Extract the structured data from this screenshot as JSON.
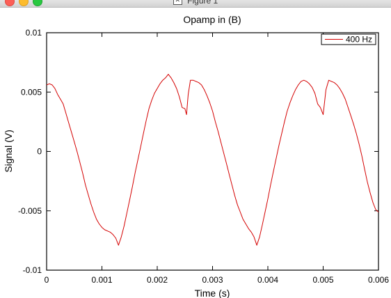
{
  "window": {
    "title": "Figure 1",
    "icon": "x11-icon"
  },
  "chart_data": {
    "type": "line",
    "title": "Opamp in (B)",
    "xlabel": "Time (s)",
    "ylabel": "Signal (V)",
    "xlim": [
      0,
      0.006
    ],
    "ylim": [
      -0.01,
      0.01
    ],
    "x_ticks": [
      0,
      0.001,
      0.002,
      0.003,
      0.004,
      0.005,
      0.006
    ],
    "x_tick_labels": [
      "0",
      "0.001",
      "0.002",
      "0.003",
      "0.004",
      "0.005",
      "0.006"
    ],
    "y_ticks": [
      -0.01,
      -0.005,
      0,
      0.005,
      0.01
    ],
    "y_tick_labels": [
      "-0.01",
      "-0.005",
      "0",
      "0.005",
      "0.01"
    ],
    "grid": false,
    "legend_position": "top-right",
    "series": [
      {
        "name": "400 Hz",
        "color": "#d40000",
        "points": [
          [
            0.0,
            0.0056
          ],
          [
            5e-05,
            0.0057
          ],
          [
            0.0001,
            0.0056
          ],
          [
            0.00015,
            0.0053
          ],
          [
            0.0002,
            0.0048
          ],
          [
            0.00025,
            0.0044
          ],
          [
            0.0003,
            0.004
          ],
          [
            0.00035,
            0.0032
          ],
          [
            0.0004,
            0.0024
          ],
          [
            0.00045,
            0.0016
          ],
          [
            0.0005,
            0.0008
          ],
          [
            0.00055,
            0.0
          ],
          [
            0.0006,
            -0.0009
          ],
          [
            0.00065,
            -0.0018
          ],
          [
            0.0007,
            -0.0028
          ],
          [
            0.00075,
            -0.0036
          ],
          [
            0.0008,
            -0.0044
          ],
          [
            0.00085,
            -0.0051
          ],
          [
            0.0009,
            -0.0057
          ],
          [
            0.00095,
            -0.0061
          ],
          [
            0.001,
            -0.0064
          ],
          [
            0.00105,
            -0.0066
          ],
          [
            0.0011,
            -0.0067
          ],
          [
            0.00115,
            -0.0068
          ],
          [
            0.0012,
            -0.007
          ],
          [
            0.00125,
            -0.0073
          ],
          [
            0.0013,
            -0.0079
          ],
          [
            0.00135,
            -0.0072
          ],
          [
            0.0014,
            -0.0063
          ],
          [
            0.00145,
            -0.0052
          ],
          [
            0.0015,
            -0.0041
          ],
          [
            0.00155,
            -0.003
          ],
          [
            0.0016,
            -0.0018
          ],
          [
            0.00165,
            -0.0007
          ],
          [
            0.0017,
            0.0004
          ],
          [
            0.00175,
            0.0015
          ],
          [
            0.0018,
            0.0026
          ],
          [
            0.00185,
            0.0036
          ],
          [
            0.0019,
            0.0043
          ],
          [
            0.00195,
            0.0049
          ],
          [
            0.002,
            0.0053
          ],
          [
            0.00205,
            0.0057
          ],
          [
            0.0021,
            0.006
          ],
          [
            0.00215,
            0.0062
          ],
          [
            0.0022,
            0.0065
          ],
          [
            0.00225,
            0.0062
          ],
          [
            0.0023,
            0.0058
          ],
          [
            0.00235,
            0.0053
          ],
          [
            0.0024,
            0.0046
          ],
          [
            0.00245,
            0.0037
          ],
          [
            0.0025,
            0.0036
          ],
          [
            0.00253,
            0.0031
          ],
          [
            0.00256,
            0.0048
          ],
          [
            0.0026,
            0.006
          ],
          [
            0.00265,
            0.006
          ],
          [
            0.0027,
            0.0059
          ],
          [
            0.00275,
            0.0058
          ],
          [
            0.0028,
            0.0056
          ],
          [
            0.00285,
            0.0052
          ],
          [
            0.0029,
            0.0047
          ],
          [
            0.00295,
            0.0041
          ],
          [
            0.003,
            0.0034
          ],
          [
            0.00305,
            0.0025
          ],
          [
            0.0031,
            0.0017
          ],
          [
            0.00315,
            0.0008
          ],
          [
            0.0032,
            -0.0001
          ],
          [
            0.00325,
            -0.001
          ],
          [
            0.0033,
            -0.0019
          ],
          [
            0.00335,
            -0.0028
          ],
          [
            0.0034,
            -0.0037
          ],
          [
            0.00345,
            -0.0045
          ],
          [
            0.0035,
            -0.0051
          ],
          [
            0.00355,
            -0.0057
          ],
          [
            0.0036,
            -0.0061
          ],
          [
            0.00365,
            -0.0065
          ],
          [
            0.0037,
            -0.0068
          ],
          [
            0.00375,
            -0.0072
          ],
          [
            0.0038,
            -0.0079
          ],
          [
            0.00385,
            -0.0072
          ],
          [
            0.0039,
            -0.0062
          ],
          [
            0.00395,
            -0.0051
          ],
          [
            0.004,
            -0.004
          ],
          [
            0.00405,
            -0.0028
          ],
          [
            0.0041,
            -0.0017
          ],
          [
            0.00415,
            -0.0006
          ],
          [
            0.0042,
            0.0005
          ],
          [
            0.00425,
            0.0015
          ],
          [
            0.0043,
            0.0025
          ],
          [
            0.00435,
            0.0034
          ],
          [
            0.0044,
            0.0041
          ],
          [
            0.00445,
            0.0047
          ],
          [
            0.0045,
            0.0052
          ],
          [
            0.00455,
            0.0056
          ],
          [
            0.0046,
            0.0059
          ],
          [
            0.00465,
            0.006
          ],
          [
            0.0047,
            0.0059
          ],
          [
            0.00475,
            0.0057
          ],
          [
            0.0048,
            0.0054
          ],
          [
            0.00485,
            0.0049
          ],
          [
            0.0049,
            0.004
          ],
          [
            0.00495,
            0.0037
          ],
          [
            0.005,
            0.0031
          ],
          [
            0.00505,
            0.0052
          ],
          [
            0.0051,
            0.006
          ],
          [
            0.00515,
            0.0059
          ],
          [
            0.0052,
            0.0058
          ],
          [
            0.00525,
            0.0056
          ],
          [
            0.0053,
            0.0053
          ],
          [
            0.00535,
            0.0049
          ],
          [
            0.0054,
            0.0044
          ],
          [
            0.00545,
            0.0037
          ],
          [
            0.0055,
            0.003
          ],
          [
            0.00555,
            0.0023
          ],
          [
            0.0056,
            0.0015
          ],
          [
            0.00565,
            0.0006
          ],
          [
            0.0057,
            -0.0004
          ],
          [
            0.00575,
            -0.0015
          ],
          [
            0.0058,
            -0.0026
          ],
          [
            0.00585,
            -0.0035
          ],
          [
            0.0059,
            -0.0043
          ],
          [
            0.00595,
            -0.0049
          ],
          [
            0.006,
            -0.0051
          ]
        ]
      }
    ]
  }
}
